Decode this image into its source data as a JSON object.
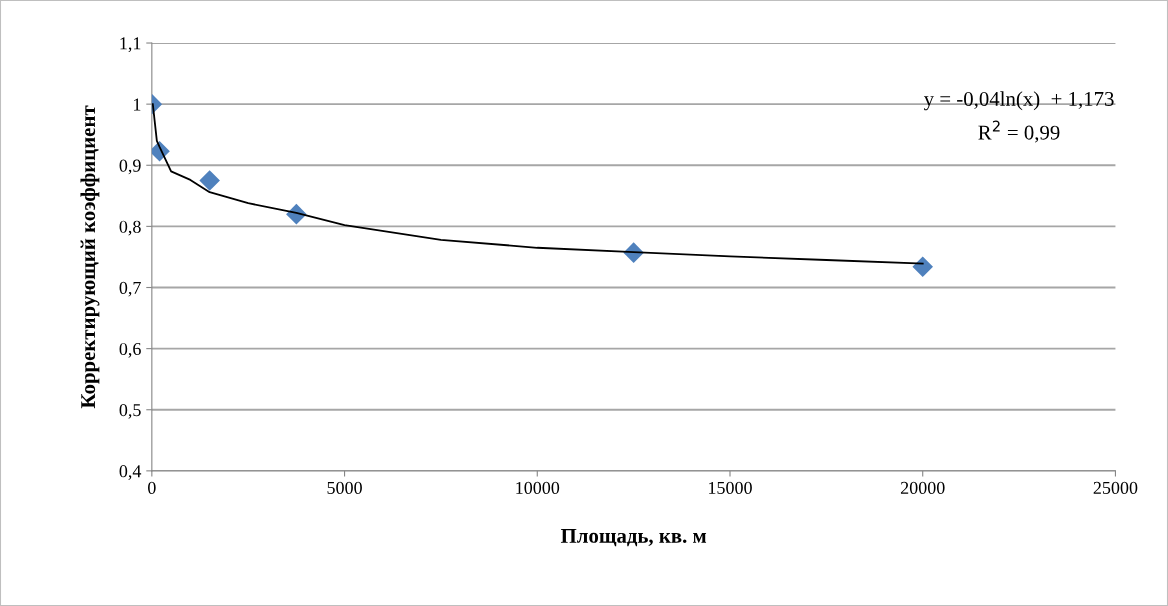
{
  "chart_data": {
    "type": "scatter",
    "xlabel": "Площадь, кв. м",
    "ylabel": "Корректирующий коэффициент",
    "xlim": [
      0,
      25000
    ],
    "xticks": [
      0,
      5000,
      10000,
      15000,
      20000,
      25000
    ],
    "ylim": [
      0.4,
      1.1
    ],
    "yticks": [
      {
        "value": 0.4,
        "label": "0,4"
      },
      {
        "value": 0.5,
        "label": "0,5"
      },
      {
        "value": 0.6,
        "label": "0,6"
      },
      {
        "value": 0.7,
        "label": "0,7"
      },
      {
        "value": 0.8,
        "label": "0,8"
      },
      {
        "value": 0.9,
        "label": "0,9"
      },
      {
        "value": 1.0,
        "label": "1"
      },
      {
        "value": 1.1,
        "label": "1,1"
      }
    ],
    "grid": "y",
    "legend": false,
    "annotations": [
      "y = -0,04ln(x)  + 1,173",
      "R$^{2}$ = 0,99"
    ],
    "series": [
      {
        "marker": "diamond",
        "color": "#4f81bd",
        "x": [
          0,
          200,
          1500,
          3750,
          12500,
          20000
        ],
        "values": [
          1.0,
          0.923,
          0.875,
          0.82,
          0.757,
          0.734
        ]
      },
      {
        "type": "line",
        "marker": "none",
        "line_style": "solid",
        "color": "#000000",
        "x": [
          25,
          130,
          200,
          500,
          1000,
          1500,
          2500,
          3750,
          5000,
          7500,
          10000,
          12500,
          15000,
          17500,
          20000
        ],
        "values": [
          1.0,
          0.94,
          0.93,
          0.89,
          0.876,
          0.856,
          0.838,
          0.822,
          0.802,
          0.778,
          0.765,
          0.758,
          0.751,
          0.745,
          0.739
        ]
      }
    ]
  }
}
